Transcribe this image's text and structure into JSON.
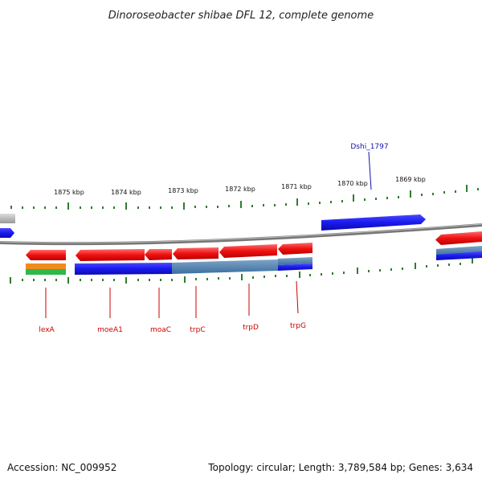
{
  "title": "Dinoroseobacter shibae DFL 12, complete genome",
  "footer": {
    "accession": "Accession: NC_009952",
    "summary": "Topology: circular; Length: 3,789,584 bp; Genes: 3,634"
  },
  "scale_labels": [
    "1875 kbp",
    "1874 kbp",
    "1873 kbp",
    "1872 kbp",
    "1871 kbp",
    "1870 kbp",
    "1869 kbp"
  ],
  "gene_labels": [
    "lexA",
    "moeA1",
    "moaC",
    "trpC",
    "trpD",
    "trpG"
  ],
  "feature_label": "Dshi_1797",
  "colors": {
    "forward_gene": "#1a1aee",
    "reverse_gene": "#ee1111",
    "backbone": "#888888",
    "tick": "#2e7d2e",
    "label_red": "#cc0000",
    "label_blue": "#1111aa"
  }
}
